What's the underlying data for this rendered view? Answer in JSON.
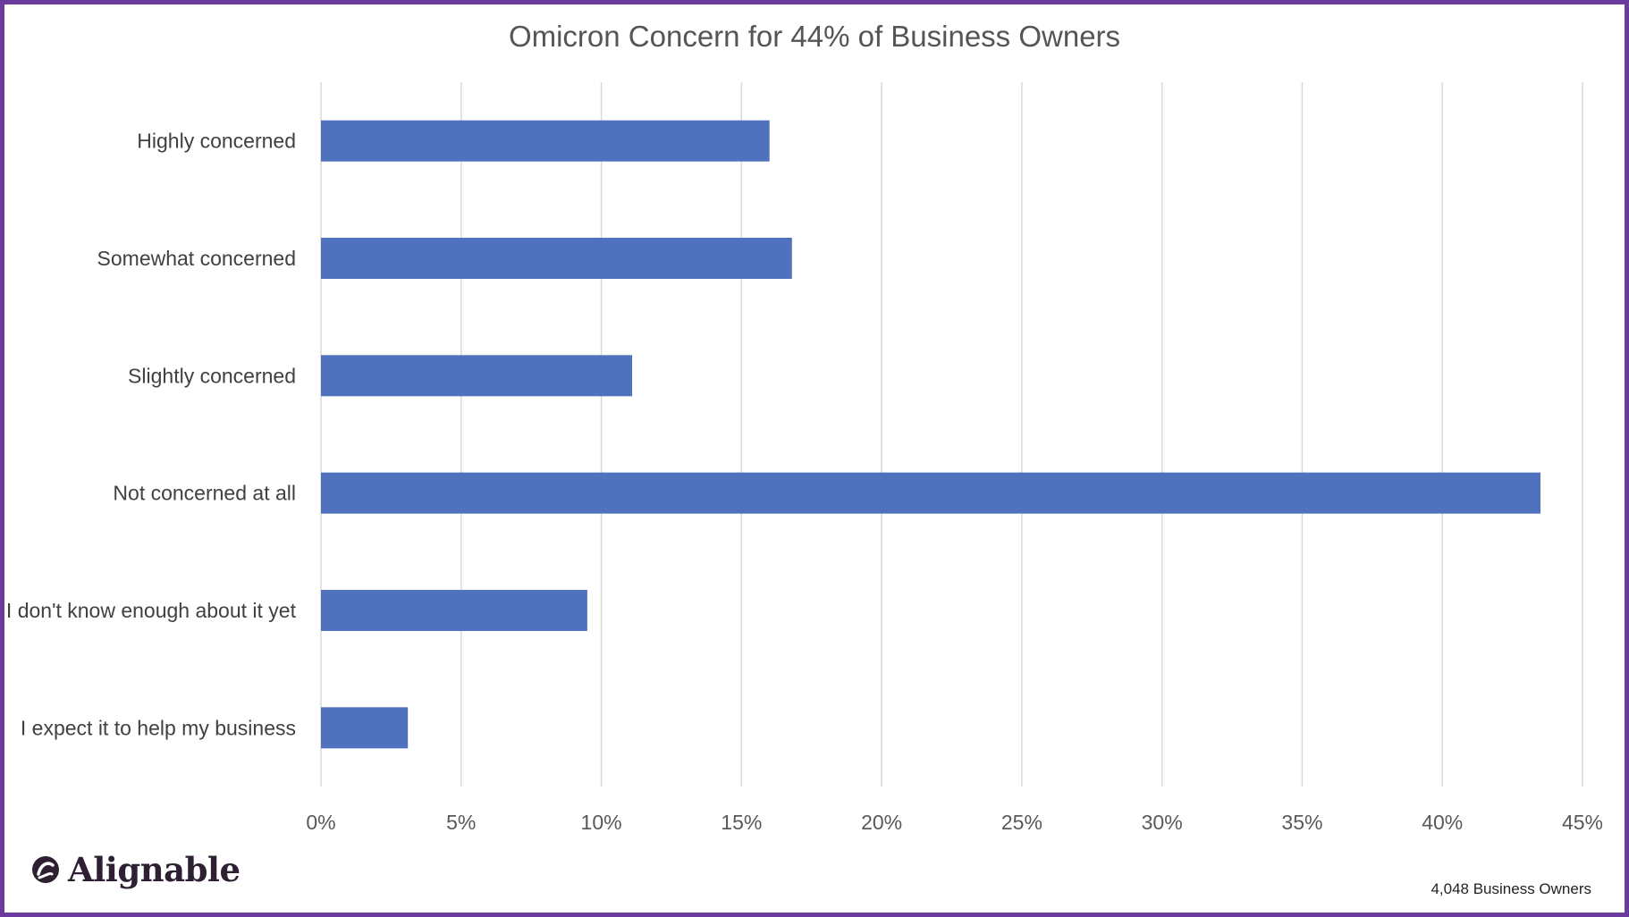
{
  "chart_data": {
    "type": "bar",
    "orientation": "horizontal",
    "title": "Omicron Concern for 44% of Business Owners",
    "categories": [
      "Highly concerned",
      "Somewhat concerned",
      "Slightly concerned",
      "Not concerned at all",
      "I don't know enough about it yet",
      "I expect it to help my business"
    ],
    "values": [
      16.0,
      16.8,
      11.1,
      43.5,
      9.5,
      3.1
    ],
    "xlim": [
      0,
      45
    ],
    "x_ticks": [
      "0%",
      "5%",
      "10%",
      "15%",
      "20%",
      "25%",
      "30%",
      "35%",
      "40%",
      "45%"
    ],
    "grid": true,
    "bar_color": "#4f71be"
  },
  "branding": {
    "logo_text": "Alignable"
  },
  "footnote": "4,048 Business Owners",
  "colors": {
    "frame": "#6a3a9c",
    "gridline": "#d9d9d9"
  }
}
